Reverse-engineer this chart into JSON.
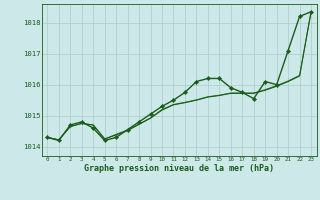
{
  "title": "Graphe pression niveau de la mer (hPa)",
  "bg_color": "#cce8e8",
  "grid_color": "#aacccc",
  "line_color_dark": "#1a5c1a",
  "line_color_med": "#2d7a2d",
  "xlim": [
    -0.5,
    23.5
  ],
  "ylim": [
    1013.7,
    1018.6
  ],
  "yticks": [
    1014,
    1015,
    1016,
    1017,
    1018
  ],
  "xticks": [
    0,
    1,
    2,
    3,
    4,
    5,
    6,
    7,
    8,
    9,
    10,
    11,
    12,
    13,
    14,
    15,
    16,
    17,
    18,
    19,
    20,
    21,
    22,
    23
  ],
  "series_markers": [
    1014.3,
    1014.2,
    1014.7,
    1014.8,
    1014.6,
    1014.2,
    1014.3,
    1014.55,
    1014.8,
    1015.05,
    1015.3,
    1015.5,
    1015.75,
    1016.1,
    1016.2,
    1016.2,
    1015.9,
    1015.75,
    1015.55,
    1016.1,
    1016.0,
    1017.1,
    1018.2,
    1018.35
  ],
  "series_line1": [
    1014.3,
    1014.22,
    1014.65,
    1014.75,
    1014.7,
    1014.25,
    1014.38,
    1014.52,
    1014.72,
    1014.92,
    1015.18,
    1015.35,
    1015.42,
    1015.5,
    1015.6,
    1015.65,
    1015.72,
    1015.72,
    1015.72,
    1015.82,
    1015.95,
    1016.1,
    1016.28,
    1018.35
  ],
  "series_line2": [
    1014.3,
    1014.22,
    1014.65,
    1014.75,
    1014.7,
    1014.25,
    1014.4,
    1014.54,
    1014.73,
    1014.93,
    1015.2,
    1015.36,
    1015.43,
    1015.51,
    1015.61,
    1015.66,
    1015.73,
    1015.73,
    1015.73,
    1015.84,
    1015.97,
    1016.12,
    1016.3,
    1018.35
  ]
}
